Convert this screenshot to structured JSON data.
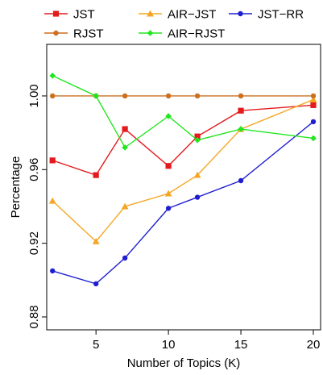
{
  "chart_data": {
    "type": "line",
    "x": [
      2,
      5,
      7,
      10,
      12,
      15,
      20
    ],
    "xlabel": "Number of Topics (K)",
    "ylabel": "Percentage",
    "xticks": [
      5,
      10,
      15,
      20
    ],
    "xtick_labels": [
      "5",
      "10",
      "15",
      "20"
    ],
    "yticks": [
      0.88,
      0.92,
      0.96,
      1.0
    ],
    "ytick_labels": [
      "0.88",
      "0.92",
      "0.96",
      "1.00"
    ],
    "xlim": [
      1.6,
      20.5
    ],
    "ylim": [
      0.873,
      1.028
    ],
    "grid": false,
    "legend_position": "top",
    "series": [
      {
        "name": "JST",
        "color": "#e41a1c",
        "marker": "square",
        "values": [
          0.965,
          0.957,
          0.982,
          0.962,
          0.978,
          0.992,
          0.995
        ]
      },
      {
        "name": "AIR−JST",
        "color": "#f5a623",
        "marker": "triangle",
        "values": [
          0.943,
          0.921,
          0.94,
          0.947,
          0.957,
          0.982,
          0.998
        ]
      },
      {
        "name": "JST−RR",
        "color": "#1f1fd1",
        "marker": "circle",
        "values": [
          0.905,
          0.898,
          0.912,
          0.939,
          0.945,
          0.954,
          0.986
        ]
      },
      {
        "name": "RJST",
        "color": "#cc6f1f",
        "marker": "circle",
        "values": [
          1.0,
          1.0,
          1.0,
          1.0,
          1.0,
          1.0,
          1.0
        ]
      },
      {
        "name": "AIR−RJST",
        "color": "#22e61f",
        "marker": "diamond",
        "values": [
          1.011,
          1.0,
          0.972,
          0.989,
          0.976,
          0.982,
          0.977
        ]
      }
    ]
  }
}
